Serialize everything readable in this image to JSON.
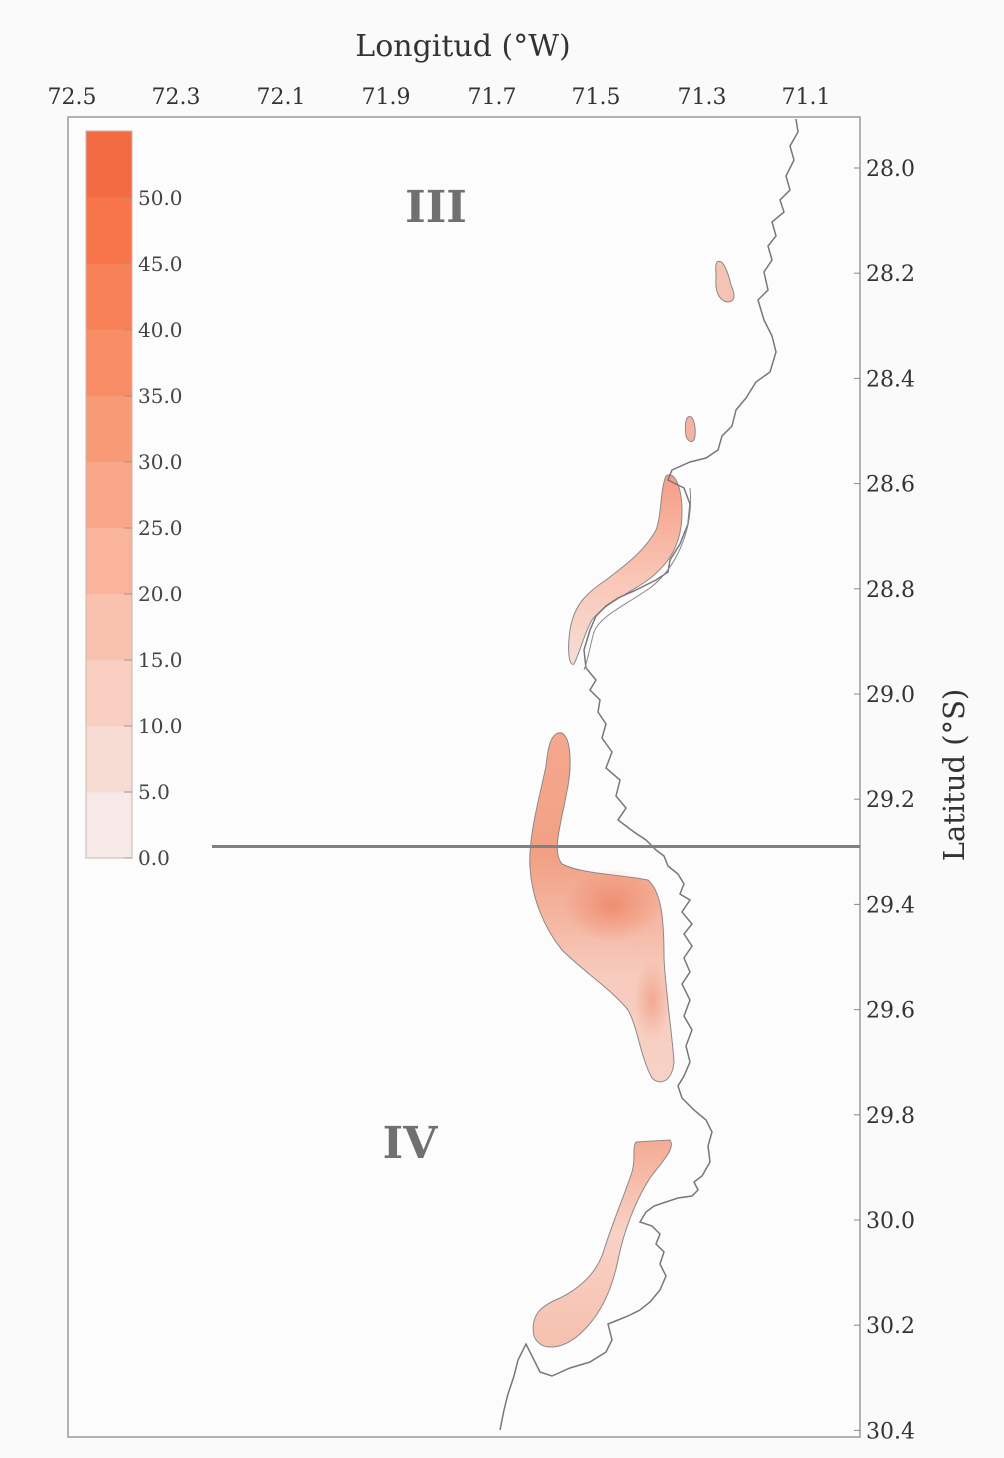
{
  "xaxis": {
    "title": "Longitud (°W)",
    "ticks": [
      "72.5",
      "72.3",
      "72.1",
      "71.9",
      "71.7",
      "71.5",
      "71.3",
      "71.1"
    ]
  },
  "yaxis": {
    "title": "Latitud (°S)",
    "ticks": [
      "28.0",
      "28.2",
      "28.4",
      "28.6",
      "28.8",
      "29.0",
      "29.2",
      "29.4",
      "29.6",
      "29.8",
      "30.0",
      "30.2",
      "30.4"
    ]
  },
  "legend": {
    "ticks": [
      "50.0",
      "45.0",
      "40.0",
      "35.0",
      "30.0",
      "25.0",
      "20.0",
      "15.0",
      "10.0",
      "5.0",
      "0.0"
    ],
    "colors": [
      "#f6e9e8",
      "#f7dcd4",
      "#f8cfc1",
      "#f9c2ae",
      "#f9b49b",
      "#f9a789",
      "#f99a77",
      "#f98d66",
      "#f98157",
      "#f77549",
      "#f26b42"
    ]
  },
  "regions": {
    "north": "III",
    "south": "IV"
  },
  "colors": {
    "coast": "#777777",
    "divider": "#808080",
    "frame": "#9a9a9a",
    "region_label": "#707070"
  },
  "divider_latitude": 29.29
}
